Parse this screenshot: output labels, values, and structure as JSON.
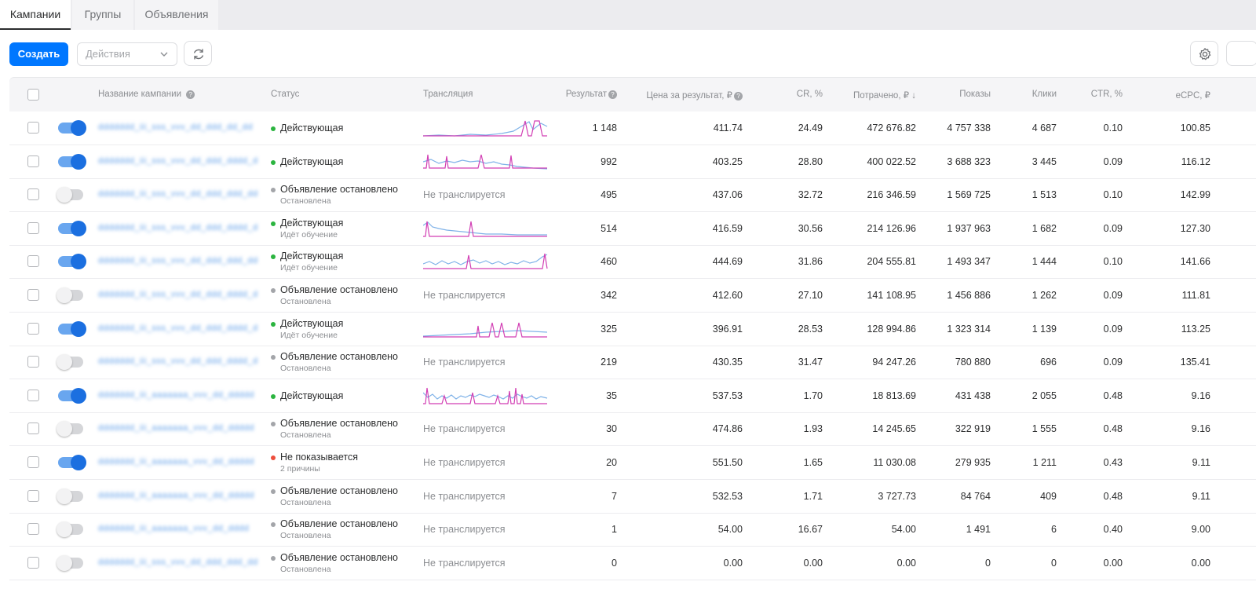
{
  "tabs": [
    {
      "label": "Кампании",
      "active": true
    },
    {
      "label": "Группы",
      "active": false
    },
    {
      "label": "Объявления",
      "active": false
    }
  ],
  "toolbar": {
    "create_label": "Создать",
    "actions_placeholder": "Действия"
  },
  "columns": {
    "name": "Название кампании",
    "status": "Статус",
    "translation": "Трансляция",
    "result": "Результат",
    "price": "Цена за результат, ₽",
    "cr": "CR, %",
    "spent": "Потрачено, ₽ ↓",
    "shows": "Показы",
    "clicks": "Клики",
    "ctr": "CTR, %",
    "ecpc": "eCPC, ₽"
  },
  "rows": [
    {
      "enabled": true,
      "name": "ddddddd_iii_sss_vvv_dd_ddd_dd_dd",
      "status": "Действующая",
      "status_color": "#2bb43f",
      "sub": "",
      "spark": 1,
      "translation": "",
      "result": "1 148",
      "price": "411.74",
      "cr": "24.49",
      "spent": "472 676.82",
      "shows": "4 757 338",
      "clicks": "4 687",
      "ctr": "0.10",
      "ecpc": "100.85"
    },
    {
      "enabled": true,
      "name": "ddddddd_iii_sss_vvv_dd_ddd_dddd_d",
      "status": "Действующая",
      "status_color": "#2bb43f",
      "sub": "",
      "spark": 2,
      "translation": "",
      "result": "992",
      "price": "403.25",
      "cr": "28.80",
      "spent": "400 022.52",
      "shows": "3 688 323",
      "clicks": "3 445",
      "ctr": "0.09",
      "ecpc": "116.12"
    },
    {
      "enabled": false,
      "name": "ddddddd_iii_sss_vvv_dd_ddd_ddd_dd",
      "status": "Объявление остановлено",
      "status_color": "#a3a5a9",
      "sub": "Остановлена",
      "spark": 0,
      "translation": "Не транслируется",
      "result": "495",
      "price": "437.06",
      "cr": "32.72",
      "spent": "216 346.59",
      "shows": "1 569 725",
      "clicks": "1 513",
      "ctr": "0.10",
      "ecpc": "142.99"
    },
    {
      "enabled": true,
      "name": "ddddddd_iii_sss_vvv_dd_ddd_dddd_d",
      "status": "Действующая",
      "status_color": "#2bb43f",
      "sub": "Идёт обучение",
      "spark": 3,
      "translation": "",
      "result": "514",
      "price": "416.59",
      "cr": "30.56",
      "spent": "214 126.96",
      "shows": "1 937 963",
      "clicks": "1 682",
      "ctr": "0.09",
      "ecpc": "127.30"
    },
    {
      "enabled": true,
      "name": "ddddddd_iii_sss_vvv_dd_ddd_ddd_dd",
      "status": "Действующая",
      "status_color": "#2bb43f",
      "sub": "Идёт обучение",
      "spark": 4,
      "translation": "",
      "result": "460",
      "price": "444.69",
      "cr": "31.86",
      "spent": "204 555.81",
      "shows": "1 493 347",
      "clicks": "1 444",
      "ctr": "0.10",
      "ecpc": "141.66"
    },
    {
      "enabled": false,
      "name": "ddddddd_iii_sss_vvv_dd_ddd_dddd_d",
      "status": "Объявление остановлено",
      "status_color": "#a3a5a9",
      "sub": "Остановлена",
      "spark": 0,
      "translation": "Не транслируется",
      "result": "342",
      "price": "412.60",
      "cr": "27.10",
      "spent": "141 108.95",
      "shows": "1 456 886",
      "clicks": "1 262",
      "ctr": "0.09",
      "ecpc": "111.81"
    },
    {
      "enabled": true,
      "name": "ddddddd_iii_sss_vvv_dd_ddd_dddd_d",
      "status": "Действующая",
      "status_color": "#2bb43f",
      "sub": "Идёт обучение",
      "spark": 5,
      "translation": "",
      "result": "325",
      "price": "396.91",
      "cr": "28.53",
      "spent": "128 994.86",
      "shows": "1 323 314",
      "clicks": "1 139",
      "ctr": "0.09",
      "ecpc": "113.25"
    },
    {
      "enabled": false,
      "name": "ddddddd_iii_sss_vvv_dd_ddd_dddd_d",
      "status": "Объявление остановлено",
      "status_color": "#a3a5a9",
      "sub": "Остановлена",
      "spark": 0,
      "translation": "Не транслируется",
      "result": "219",
      "price": "430.35",
      "cr": "31.47",
      "spent": "94 247.26",
      "shows": "780 880",
      "clicks": "696",
      "ctr": "0.09",
      "ecpc": "135.41"
    },
    {
      "enabled": true,
      "name": "ddddddd_iii_aaaaaaa_vvv_dd_ddddd",
      "status": "Действующая",
      "status_color": "#2bb43f",
      "sub": "",
      "spark": 6,
      "translation": "",
      "result": "35",
      "price": "537.53",
      "cr": "1.70",
      "spent": "18 813.69",
      "shows": "431 438",
      "clicks": "2 055",
      "ctr": "0.48",
      "ecpc": "9.16"
    },
    {
      "enabled": false,
      "name": "ddddddd_iii_aaaaaaa_vvv_dd_ddddd",
      "status": "Объявление остановлено",
      "status_color": "#a3a5a9",
      "sub": "Остановлена",
      "spark": 0,
      "translation": "Не транслируется",
      "result": "30",
      "price": "474.86",
      "cr": "1.93",
      "spent": "14 245.65",
      "shows": "322 919",
      "clicks": "1 555",
      "ctr": "0.48",
      "ecpc": "9.16"
    },
    {
      "enabled": true,
      "name": "ddddddd_iii_aaaaaaa_vvv_dd_ddddd",
      "status": "Не показывается",
      "status_color": "#ed4e3c",
      "sub": "2 причины",
      "spark": 0,
      "translation": "Не транслируется",
      "result": "20",
      "price": "551.50",
      "cr": "1.65",
      "spent": "11 030.08",
      "shows": "279 935",
      "clicks": "1 211",
      "ctr": "0.43",
      "ecpc": "9.11"
    },
    {
      "enabled": false,
      "name": "ddddddd_iii_aaaaaaa_vvv_dd_ddddd",
      "status": "Объявление остановлено",
      "status_color": "#a3a5a9",
      "sub": "Остановлена",
      "spark": 0,
      "translation": "Не транслируется",
      "result": "7",
      "price": "532.53",
      "cr": "1.71",
      "spent": "3 727.73",
      "shows": "84 764",
      "clicks": "409",
      "ctr": "0.48",
      "ecpc": "9.11"
    },
    {
      "enabled": false,
      "name": "ddddddd_iii_aaaaaaa_vvv_dd_dddd",
      "status": "Объявление остановлено",
      "status_color": "#a3a5a9",
      "sub": "Остановлена",
      "spark": 0,
      "translation": "Не транслируется",
      "result": "1",
      "price": "54.00",
      "cr": "16.67",
      "spent": "54.00",
      "shows": "1 491",
      "clicks": "6",
      "ctr": "0.40",
      "ecpc": "9.00"
    },
    {
      "enabled": false,
      "name": "ddddddd_iii_sss_vvv_dd_ddd_ddd_dd",
      "status": "Объявление остановлено",
      "status_color": "#a3a5a9",
      "sub": "Остановлена",
      "spark": 0,
      "translation": "Не транслируется",
      "result": "0",
      "price": "0.00",
      "cr": "0.00",
      "spent": "0.00",
      "shows": "0",
      "clicks": "0",
      "ctr": "0.00",
      "ecpc": "0.00"
    }
  ],
  "colors": {
    "accent": "#0077ff",
    "active_status": "#2bb43f",
    "stopped_status": "#a3a5a9",
    "error_status": "#ed4e3c",
    "spark_blue": "#7fb2e8",
    "spark_pink": "#d23fb4"
  }
}
